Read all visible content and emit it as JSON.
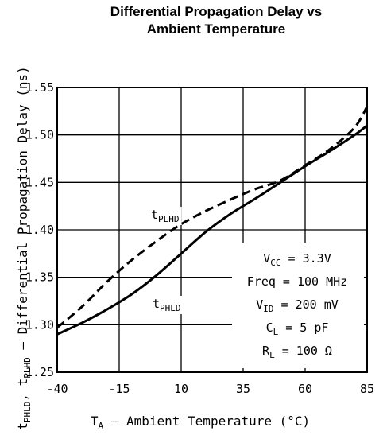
{
  "chart_data": {
    "type": "line",
    "title": "Differential Propagation Delay vs Ambient Temperature",
    "title_lines": [
      "Differential Propagation Delay vs",
      "Ambient Temperature"
    ],
    "xlabel": {
      "pre": "T",
      "sub": "A",
      "post": " – Ambient Temperature (°C)"
    },
    "ylabel": {
      "p1": "t",
      "s1": "PHLD",
      "p2": ", t",
      "s2": "PLHD",
      "p3": " – Differential Propagation Delay (ns)"
    },
    "x_ticks": [
      -40,
      -15,
      10,
      35,
      60,
      85
    ],
    "x_tick_labels": [
      "-40",
      "-15",
      "10",
      "35",
      "60",
      "85"
    ],
    "y_ticks": [
      1.25,
      1.3,
      1.35,
      1.4,
      1.45,
      1.5,
      1.55
    ],
    "y_tick_labels": [
      "1.25",
      "1.30",
      "1.35",
      "1.40",
      "1.45",
      "1.50",
      "1.55"
    ],
    "xlim": [
      -40,
      85
    ],
    "ylim": [
      1.25,
      1.55
    ],
    "grid": true,
    "series": [
      {
        "name": "tPLHD",
        "label": {
          "pre": "t",
          "sub": "PLHD"
        },
        "style": "dashed",
        "x": [
          -40,
          -30,
          -20,
          -10,
          0,
          10,
          20,
          30,
          40,
          50,
          60,
          70,
          80,
          85
        ],
        "y": [
          1.297,
          1.319,
          1.345,
          1.368,
          1.388,
          1.406,
          1.42,
          1.432,
          1.443,
          1.452,
          1.468,
          1.485,
          1.508,
          1.53
        ]
      },
      {
        "name": "tPHLD",
        "label": {
          "pre": "t",
          "sub": "PHLD"
        },
        "style": "solid",
        "x": [
          -40,
          -30,
          -20,
          -10,
          0,
          10,
          20,
          30,
          40,
          50,
          60,
          70,
          80,
          85
        ],
        "y": [
          1.29,
          1.302,
          1.316,
          1.332,
          1.352,
          1.375,
          1.398,
          1.417,
          1.433,
          1.45,
          1.467,
          1.483,
          1.5,
          1.51
        ]
      }
    ],
    "conditions": [
      {
        "pre": "V",
        "sub": "CC",
        "post": " = 3.3V"
      },
      {
        "pre": "Freq = 100 MHz",
        "sub": "",
        "post": ""
      },
      {
        "pre": "V",
        "sub": "ID",
        "post": " = 200 mV"
      },
      {
        "pre": "C",
        "sub": "L",
        "post": " = 5 pF"
      },
      {
        "pre": "R",
        "sub": "L",
        "post": " = 100 Ω"
      }
    ]
  }
}
